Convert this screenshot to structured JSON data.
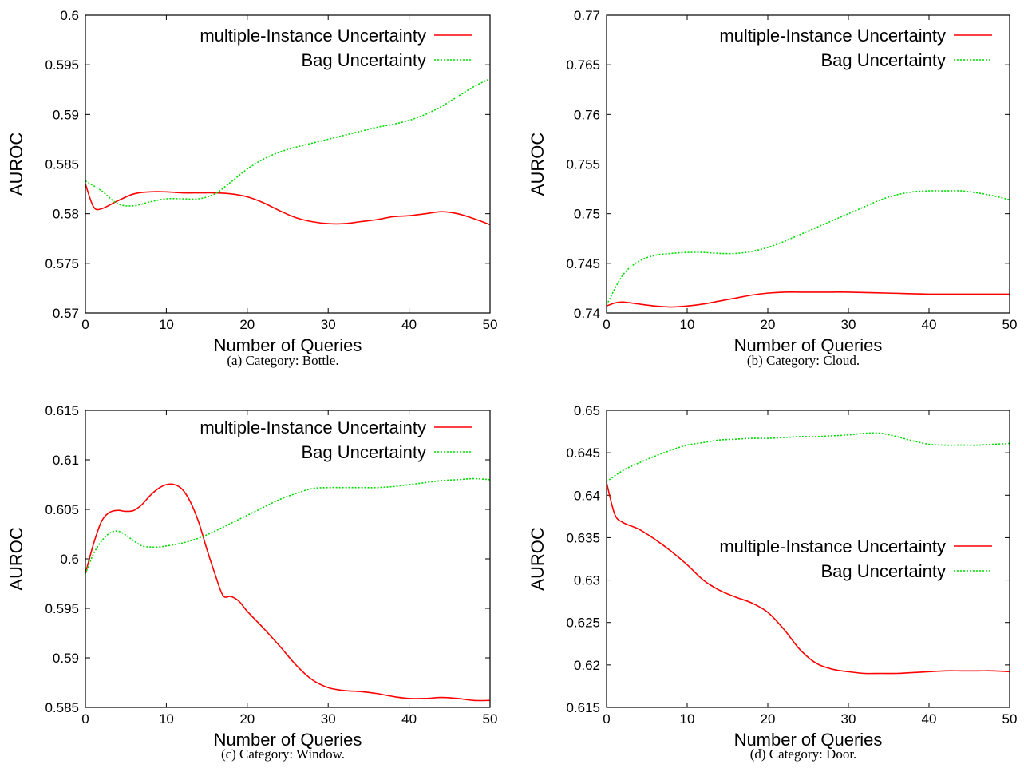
{
  "chart_data": [
    {
      "type": "line",
      "caption": "(a)  Category: Bottle.",
      "xlabel": "Number of Queries",
      "ylabel": "AUROC",
      "xlim": [
        0,
        50
      ],
      "ylim": [
        0.57,
        0.6
      ],
      "xticks": [
        "0",
        "10",
        "20",
        "30",
        "40",
        "50"
      ],
      "yticks": [
        "0.57",
        "0.575",
        "0.58",
        "0.585",
        "0.59",
        "0.595",
        "0.6"
      ],
      "legend_position": "top-right",
      "series": [
        {
          "name": "multiple-Instance Uncertainty",
          "color": "#ff0000",
          "dash": "solid",
          "x": [
            0,
            1,
            2,
            4,
            6,
            8,
            10,
            12,
            14,
            16,
            18,
            20,
            22,
            24,
            26,
            28,
            30,
            32,
            34,
            36,
            38,
            40,
            42,
            44,
            46,
            48,
            50
          ],
          "y": [
            0.583,
            0.5807,
            0.5805,
            0.5813,
            0.582,
            0.5822,
            0.5822,
            0.5821,
            0.5821,
            0.5821,
            0.582,
            0.5817,
            0.5811,
            0.5803,
            0.5796,
            0.5792,
            0.579,
            0.579,
            0.5792,
            0.5794,
            0.5797,
            0.5798,
            0.58,
            0.5802,
            0.58,
            0.5795,
            0.5789
          ]
        },
        {
          "name": "Bag Uncertainty",
          "color": "#00dd00",
          "dash": "dotted",
          "x": [
            0,
            2,
            4,
            6,
            8,
            10,
            12,
            14,
            16,
            18,
            20,
            22,
            24,
            26,
            28,
            30,
            32,
            34,
            36,
            38,
            40,
            42,
            44,
            46,
            48,
            50
          ],
          "y": [
            0.5833,
            0.5823,
            0.581,
            0.5808,
            0.5812,
            0.5815,
            0.5815,
            0.5815,
            0.582,
            0.5832,
            0.5845,
            0.5855,
            0.5862,
            0.5867,
            0.5871,
            0.5875,
            0.5879,
            0.5883,
            0.5887,
            0.589,
            0.5894,
            0.59,
            0.5908,
            0.5918,
            0.5928,
            0.5936
          ]
        }
      ]
    },
    {
      "type": "line",
      "caption": "(b)  Category: Cloud.",
      "xlabel": "Number of Queries",
      "ylabel": "AUROC",
      "xlim": [
        0,
        50
      ],
      "ylim": [
        0.74,
        0.77
      ],
      "xticks": [
        "0",
        "10",
        "20",
        "30",
        "40",
        "50"
      ],
      "yticks": [
        "0.74",
        "0.745",
        "0.75",
        "0.755",
        "0.76",
        "0.765",
        "0.77"
      ],
      "legend_position": "top-right",
      "series": [
        {
          "name": "multiple-Instance Uncertainty",
          "color": "#ff0000",
          "dash": "solid",
          "x": [
            0,
            1,
            2,
            4,
            6,
            8,
            10,
            12,
            14,
            16,
            18,
            20,
            22,
            24,
            26,
            28,
            30,
            35,
            40,
            45,
            50
          ],
          "y": [
            0.7407,
            0.741,
            0.7411,
            0.7409,
            0.7407,
            0.7406,
            0.7407,
            0.7409,
            0.7412,
            0.7415,
            0.7418,
            0.742,
            0.7421,
            0.7421,
            0.7421,
            0.7421,
            0.7421,
            0.742,
            0.7419,
            0.7419,
            0.7419
          ]
        },
        {
          "name": "Bag Uncertainty",
          "color": "#00dd00",
          "dash": "dotted",
          "x": [
            0,
            2,
            4,
            6,
            8,
            10,
            12,
            14,
            16,
            18,
            20,
            22,
            24,
            26,
            28,
            30,
            32,
            34,
            36,
            38,
            40,
            42,
            44,
            46,
            48,
            50
          ],
          "y": [
            0.7408,
            0.7438,
            0.7452,
            0.7458,
            0.746,
            0.7461,
            0.7461,
            0.746,
            0.746,
            0.7462,
            0.7466,
            0.7472,
            0.7479,
            0.7486,
            0.7493,
            0.75,
            0.7507,
            0.7514,
            0.7519,
            0.7522,
            0.7523,
            0.7523,
            0.7523,
            0.7521,
            0.7518,
            0.7514
          ]
        }
      ]
    },
    {
      "type": "line",
      "caption": "(c)  Category: Window.",
      "xlabel": "Number of Queries",
      "ylabel": "AUROC",
      "xlim": [
        0,
        50
      ],
      "ylim": [
        0.585,
        0.615
      ],
      "xticks": [
        "0",
        "10",
        "20",
        "30",
        "40",
        "50"
      ],
      "yticks": [
        "0.585",
        "0.59",
        "0.595",
        "0.6",
        "0.605",
        "0.61",
        "0.615"
      ],
      "legend_position": "top-right",
      "series": [
        {
          "name": "multiple-Instance Uncertainty",
          "color": "#ff0000",
          "dash": "solid",
          "x": [
            0,
            1,
            2,
            3,
            4,
            5,
            6,
            7,
            8,
            9,
            10,
            11,
            12,
            13,
            14,
            15,
            16,
            17,
            18,
            19,
            20,
            22,
            24,
            26,
            28,
            30,
            32,
            34,
            36,
            38,
            40,
            42,
            44,
            46,
            48,
            50
          ],
          "y": [
            0.5985,
            0.6015,
            0.6038,
            0.6047,
            0.6049,
            0.6048,
            0.6049,
            0.6055,
            0.6064,
            0.6071,
            0.6075,
            0.6075,
            0.607,
            0.6057,
            0.6037,
            0.601,
            0.5985,
            0.5963,
            0.5962,
            0.5957,
            0.5947,
            0.593,
            0.5912,
            0.5893,
            0.5878,
            0.587,
            0.5867,
            0.5866,
            0.5864,
            0.5861,
            0.5859,
            0.5859,
            0.586,
            0.5859,
            0.5857,
            0.5857
          ]
        },
        {
          "name": "Bag Uncertainty",
          "color": "#00dd00",
          "dash": "dotted",
          "x": [
            0,
            1,
            2,
            3,
            4,
            5,
            6,
            7,
            8,
            9,
            10,
            12,
            14,
            16,
            18,
            20,
            22,
            24,
            26,
            28,
            30,
            32,
            34,
            36,
            38,
            40,
            42,
            44,
            46,
            48,
            50
          ],
          "y": [
            0.5985,
            0.6005,
            0.6018,
            0.6026,
            0.6028,
            0.6024,
            0.6018,
            0.6013,
            0.6012,
            0.6012,
            0.6013,
            0.6016,
            0.6021,
            0.6028,
            0.6036,
            0.6044,
            0.6052,
            0.606,
            0.6066,
            0.6071,
            0.6072,
            0.6072,
            0.6072,
            0.6072,
            0.6073,
            0.6075,
            0.6077,
            0.6079,
            0.608,
            0.6081,
            0.608
          ]
        }
      ]
    },
    {
      "type": "line",
      "caption": "(d)  Category: Door.",
      "xlabel": "Number of Queries",
      "ylabel": "AUROC",
      "xlim": [
        0,
        50
      ],
      "ylim": [
        0.615,
        0.65
      ],
      "xticks": [
        "0",
        "10",
        "20",
        "30",
        "40",
        "50"
      ],
      "yticks": [
        "0.615",
        "0.62",
        "0.625",
        "0.63",
        "0.635",
        "0.64",
        "0.645",
        "0.65"
      ],
      "legend_position": "center-right",
      "series": [
        {
          "name": "multiple-Instance Uncertainty",
          "color": "#ff0000",
          "dash": "solid",
          "x": [
            0,
            1,
            2,
            4,
            6,
            8,
            10,
            12,
            14,
            16,
            18,
            20,
            22,
            24,
            26,
            28,
            30,
            32,
            34,
            36,
            38,
            40,
            42,
            44,
            46,
            48,
            50
          ],
          "y": [
            0.6415,
            0.6378,
            0.6368,
            0.636,
            0.6348,
            0.6334,
            0.6318,
            0.63,
            0.6288,
            0.628,
            0.6273,
            0.6262,
            0.6242,
            0.6218,
            0.6202,
            0.6195,
            0.6192,
            0.619,
            0.619,
            0.619,
            0.6191,
            0.6192,
            0.6193,
            0.6193,
            0.6193,
            0.6193,
            0.6192
          ]
        },
        {
          "name": "Bag Uncertainty",
          "color": "#00dd00",
          "dash": "dotted",
          "x": [
            0,
            2,
            4,
            6,
            8,
            10,
            12,
            14,
            16,
            18,
            20,
            22,
            24,
            26,
            28,
            30,
            32,
            34,
            36,
            38,
            40,
            42,
            44,
            46,
            48,
            50
          ],
          "y": [
            0.6416,
            0.6429,
            0.6438,
            0.6446,
            0.6453,
            0.6459,
            0.6462,
            0.6465,
            0.6466,
            0.6467,
            0.6467,
            0.6468,
            0.6469,
            0.6469,
            0.647,
            0.6471,
            0.6473,
            0.6473,
            0.6469,
            0.6464,
            0.646,
            0.6459,
            0.6459,
            0.6459,
            0.646,
            0.6461
          ]
        }
      ]
    }
  ]
}
